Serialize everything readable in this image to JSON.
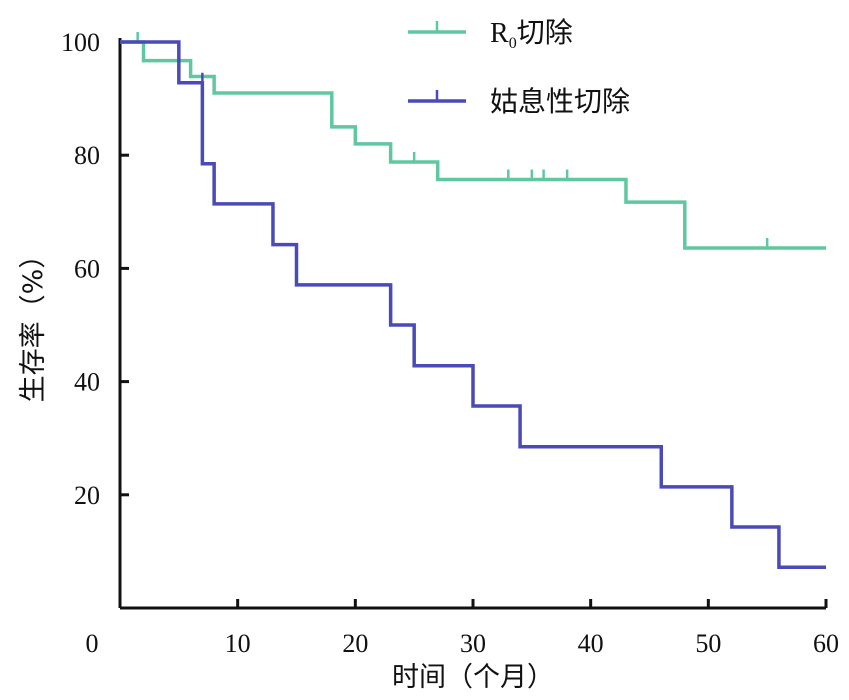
{
  "chart_data": {
    "type": "line",
    "subtype": "kaplan-meier-step",
    "title": "",
    "xlabel": "时间（个月）",
    "ylabel": "生存率（%）",
    "xlim": [
      0,
      60
    ],
    "ylim": [
      0,
      100
    ],
    "x_ticks": [
      0,
      10,
      20,
      30,
      40,
      50,
      60
    ],
    "y_ticks": [
      20,
      40,
      60,
      80,
      100
    ],
    "grid": false,
    "legend_position": "top-center",
    "series": [
      {
        "name": "R0切除",
        "legend_main": "R",
        "legend_sub": "0",
        "legend_rest": "切除",
        "color": "#5fc8a0",
        "steps": [
          [
            0,
            100
          ],
          [
            2,
            96.7
          ],
          [
            6,
            93.9
          ],
          [
            8,
            91
          ],
          [
            18,
            85
          ],
          [
            20,
            82
          ],
          [
            23,
            78.8
          ],
          [
            27,
            75.7
          ],
          [
            43,
            71.7
          ],
          [
            48,
            63.6
          ],
          [
            60,
            63.6
          ]
        ],
        "censored": [
          [
            1.5,
            100
          ],
          [
            25,
            78.8
          ],
          [
            33,
            75.7
          ],
          [
            35,
            75.7
          ],
          [
            36,
            75.7
          ],
          [
            38,
            75.7
          ],
          [
            55,
            63.6
          ]
        ]
      },
      {
        "name": "姑息性切除",
        "color": "#4a4ab8",
        "steps": [
          [
            0,
            100
          ],
          [
            5,
            92.8
          ],
          [
            7,
            78.5
          ],
          [
            8,
            71.4
          ],
          [
            13,
            64.2
          ],
          [
            15,
            57.1
          ],
          [
            23,
            50
          ],
          [
            25,
            42.8
          ],
          [
            30,
            35.7
          ],
          [
            34,
            28.5
          ],
          [
            46,
            21.4
          ],
          [
            52,
            14.3
          ],
          [
            56,
            7.2
          ],
          [
            60,
            7.2
          ]
        ],
        "censored": [
          [
            7,
            92.8
          ]
        ]
      }
    ]
  }
}
